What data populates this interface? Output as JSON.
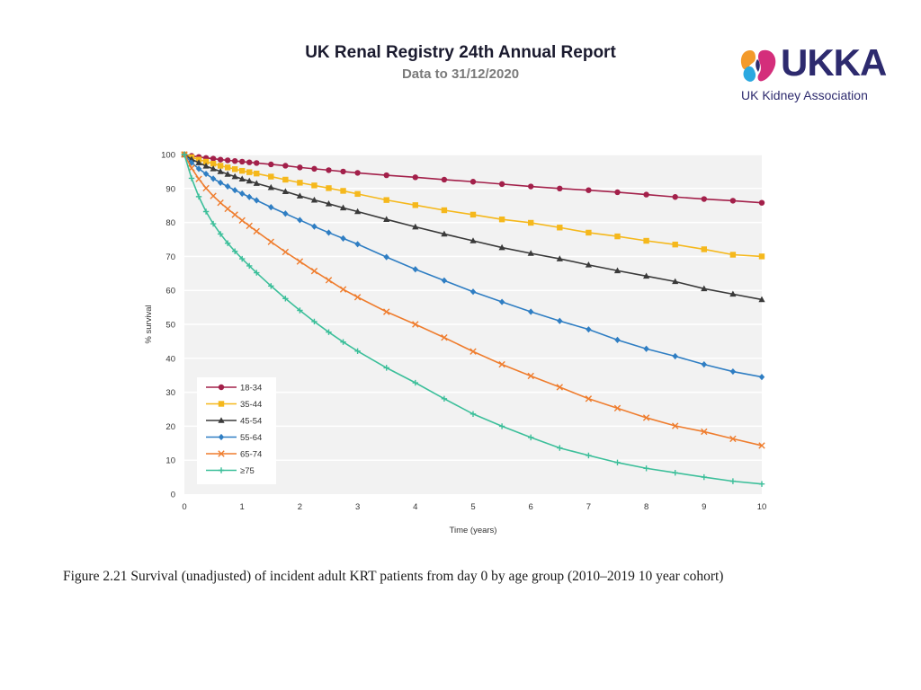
{
  "header": {
    "title": "UK Renal Registry 24th Annual Report",
    "subtitle": "Data to 31/12/2020"
  },
  "logo": {
    "wordmark": "UKKA",
    "tagline": "UK Kidney Association",
    "colors": {
      "blue": "#2d2a6e",
      "orange": "#f39a2b",
      "pink": "#d42e7b",
      "cyan": "#2aa8e0"
    }
  },
  "caption": "Figure 2.21 Survival (unadjusted) of incident adult KRT patients from day 0 by age group (2010–2019 10 year cohort)",
  "chart_data": {
    "type": "line",
    "title": "",
    "xlabel": "Time (years)",
    "ylabel": "% survival",
    "xlim": [
      0,
      10
    ],
    "ylim": [
      0,
      100
    ],
    "xticks": [
      0,
      1,
      2,
      3,
      4,
      5,
      6,
      7,
      8,
      9,
      10
    ],
    "yticks": [
      0,
      10,
      20,
      30,
      40,
      50,
      60,
      70,
      80,
      90,
      100
    ],
    "grid": true,
    "legend_position": "bottom-left",
    "series": [
      {
        "name": "18-34",
        "color": "#a3204a",
        "marker": "circle",
        "x": [
          0,
          0.125,
          0.25,
          0.375,
          0.5,
          0.625,
          0.75,
          0.875,
          1,
          1.125,
          1.25,
          1.5,
          1.75,
          2,
          2.25,
          2.5,
          2.75,
          3,
          3.5,
          4,
          4.5,
          5,
          5.5,
          6,
          6.5,
          7,
          7.5,
          8,
          8.5,
          9,
          9.5,
          10
        ],
        "y": [
          100,
          99.6,
          99.3,
          99.0,
          98.8,
          98.5,
          98.3,
          98.1,
          97.9,
          97.7,
          97.5,
          97.1,
          96.7,
          96.2,
          95.8,
          95.4,
          95.0,
          94.6,
          93.9,
          93.3,
          92.6,
          92.0,
          91.3,
          90.6,
          90.0,
          89.5,
          88.9,
          88.2,
          87.5,
          86.9,
          86.4,
          85.8
        ]
      },
      {
        "name": "35-44",
        "color": "#f5b81c",
        "marker": "square",
        "x": [
          0,
          0.125,
          0.25,
          0.375,
          0.5,
          0.625,
          0.75,
          0.875,
          1,
          1.125,
          1.25,
          1.5,
          1.75,
          2,
          2.25,
          2.5,
          2.75,
          3,
          3.5,
          4,
          4.5,
          5,
          5.5,
          6,
          6.5,
          7,
          7.5,
          8,
          8.5,
          9,
          9.5,
          10
        ],
        "y": [
          100,
          99.2,
          98.5,
          97.9,
          97.3,
          96.7,
          96.2,
          95.7,
          95.2,
          94.8,
          94.4,
          93.5,
          92.6,
          91.7,
          90.9,
          90.1,
          89.3,
          88.4,
          86.6,
          85.1,
          83.6,
          82.3,
          80.9,
          79.9,
          78.5,
          77.0,
          75.9,
          74.6,
          73.5,
          72.1,
          70.5,
          70.0
        ]
      },
      {
        "name": "45-54",
        "color": "#3a3a3a",
        "marker": "triangle",
        "x": [
          0,
          0.125,
          0.25,
          0.375,
          0.5,
          0.625,
          0.75,
          0.875,
          1,
          1.125,
          1.25,
          1.5,
          1.75,
          2,
          2.25,
          2.5,
          2.75,
          3,
          3.5,
          4,
          4.5,
          5,
          5.5,
          6,
          6.5,
          7,
          7.5,
          8,
          8.5,
          9,
          9.5,
          10
        ],
        "y": [
          100,
          98.6,
          97.6,
          96.6,
          95.8,
          95.0,
          94.2,
          93.5,
          92.8,
          92.2,
          91.5,
          90.3,
          89.1,
          87.8,
          86.6,
          85.5,
          84.3,
          83.2,
          80.9,
          78.7,
          76.6,
          74.6,
          72.6,
          70.9,
          69.3,
          67.5,
          65.8,
          64.2,
          62.6,
          60.5,
          58.9,
          57.3
        ]
      },
      {
        "name": "55-64",
        "color": "#2f7ec3",
        "marker": "diamond",
        "x": [
          0,
          0.125,
          0.25,
          0.375,
          0.5,
          0.625,
          0.75,
          0.875,
          1,
          1.125,
          1.25,
          1.5,
          1.75,
          2,
          2.25,
          2.5,
          2.75,
          3,
          3.5,
          4,
          4.5,
          5,
          5.5,
          6,
          6.5,
          7,
          7.5,
          8,
          8.5,
          9,
          9.5,
          10
        ],
        "y": [
          100,
          97.6,
          95.8,
          94.3,
          92.9,
          91.7,
          90.6,
          89.5,
          88.5,
          87.5,
          86.5,
          84.5,
          82.6,
          80.7,
          78.8,
          77.0,
          75.3,
          73.6,
          69.8,
          66.2,
          62.9,
          59.6,
          56.6,
          53.7,
          51.0,
          48.5,
          45.4,
          42.8,
          40.6,
          38.2,
          36.1,
          34.5
        ]
      },
      {
        "name": "65-74",
        "color": "#ef7d2e",
        "marker": "x",
        "x": [
          0,
          0.125,
          0.25,
          0.375,
          0.5,
          0.625,
          0.75,
          0.875,
          1,
          1.125,
          1.25,
          1.5,
          1.75,
          2,
          2.25,
          2.5,
          2.75,
          3,
          3.5,
          4,
          4.5,
          5,
          5.5,
          6,
          6.5,
          7,
          7.5,
          8,
          8.5,
          9,
          9.5,
          10
        ],
        "y": [
          100,
          96.0,
          92.8,
          90.1,
          87.8,
          85.8,
          84.0,
          82.3,
          80.6,
          79.0,
          77.4,
          74.3,
          71.3,
          68.5,
          65.7,
          63.0,
          60.3,
          58.0,
          53.7,
          50.0,
          46.1,
          42.0,
          38.2,
          34.8,
          31.5,
          28.1,
          25.3,
          22.5,
          20.1,
          18.4,
          16.3,
          14.3
        ]
      },
      {
        "name": "≥75",
        "color": "#3cbf9a",
        "marker": "plus",
        "x": [
          0,
          0.125,
          0.25,
          0.375,
          0.5,
          0.625,
          0.75,
          0.875,
          1,
          1.125,
          1.25,
          1.5,
          1.75,
          2,
          2.25,
          2.5,
          2.75,
          3,
          3.5,
          4,
          4.5,
          5,
          5.5,
          6,
          6.5,
          7,
          7.5,
          8,
          8.5,
          9,
          9.5,
          10
        ],
        "y": [
          100,
          93.0,
          87.6,
          83.2,
          79.6,
          76.6,
          73.9,
          71.5,
          69.3,
          67.2,
          65.2,
          61.3,
          57.6,
          54.1,
          50.8,
          47.7,
          44.8,
          42.1,
          37.2,
          32.8,
          28.1,
          23.6,
          20.0,
          16.7,
          13.6,
          11.4,
          9.3,
          7.6,
          6.3,
          5.0,
          3.8,
          3.0
        ]
      }
    ]
  }
}
